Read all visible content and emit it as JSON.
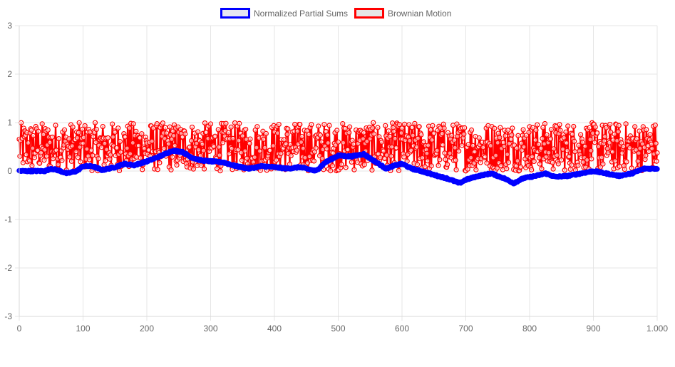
{
  "chart_data": {
    "type": "line",
    "title": "",
    "xlabel": "",
    "ylabel": "",
    "xlim": [
      0,
      1000
    ],
    "ylim": [
      -3,
      3
    ],
    "x_ticks": [
      "0",
      "100",
      "200",
      "300",
      "400",
      "500",
      "600",
      "700",
      "800",
      "900",
      "1.000"
    ],
    "y_ticks": [
      "3",
      "2",
      "1",
      "0",
      "-1",
      "-2",
      "-3"
    ],
    "grid": true,
    "legend_position": "top-center",
    "n_points": 1001,
    "series": [
      {
        "name": "Normalized Partial Sums",
        "color": "#0000ff",
        "fill": "#e6e6f2",
        "keypoints": [
          [
            0,
            0.0
          ],
          [
            20,
            0.0
          ],
          [
            40,
            0.0
          ],
          [
            50,
            0.05
          ],
          [
            60,
            0.02
          ],
          [
            75,
            -0.05
          ],
          [
            90,
            0.0
          ],
          [
            100,
            0.1
          ],
          [
            115,
            0.1
          ],
          [
            130,
            0.02
          ],
          [
            150,
            0.08
          ],
          [
            165,
            0.15
          ],
          [
            180,
            0.12
          ],
          [
            200,
            0.2
          ],
          [
            220,
            0.3
          ],
          [
            240,
            0.42
          ],
          [
            255,
            0.4
          ],
          [
            270,
            0.28
          ],
          [
            285,
            0.22
          ],
          [
            300,
            0.2
          ],
          [
            320,
            0.18
          ],
          [
            340,
            0.1
          ],
          [
            360,
            0.05
          ],
          [
            380,
            0.1
          ],
          [
            400,
            0.08
          ],
          [
            420,
            0.05
          ],
          [
            440,
            0.08
          ],
          [
            465,
            0.0
          ],
          [
            480,
            0.18
          ],
          [
            500,
            0.32
          ],
          [
            520,
            0.3
          ],
          [
            540,
            0.35
          ],
          [
            555,
            0.22
          ],
          [
            575,
            0.05
          ],
          [
            590,
            0.12
          ],
          [
            600,
            0.15
          ],
          [
            615,
            0.05
          ],
          [
            630,
            0.0
          ],
          [
            650,
            -0.08
          ],
          [
            670,
            -0.15
          ],
          [
            690,
            -0.25
          ],
          [
            700,
            -0.18
          ],
          [
            720,
            -0.1
          ],
          [
            740,
            -0.05
          ],
          [
            760,
            -0.15
          ],
          [
            775,
            -0.25
          ],
          [
            790,
            -0.15
          ],
          [
            810,
            -0.1
          ],
          [
            825,
            -0.05
          ],
          [
            840,
            -0.12
          ],
          [
            860,
            -0.1
          ],
          [
            880,
            -0.05
          ],
          [
            900,
            0.0
          ],
          [
            920,
            -0.05
          ],
          [
            940,
            -0.1
          ],
          [
            960,
            -0.05
          ],
          [
            980,
            0.05
          ],
          [
            1000,
            0.05
          ]
        ]
      },
      {
        "name": "Brownian Motion",
        "color": "#ff0000",
        "fill": "#e6e6e6",
        "range": [
          0.0,
          1.0
        ]
      }
    ]
  }
}
